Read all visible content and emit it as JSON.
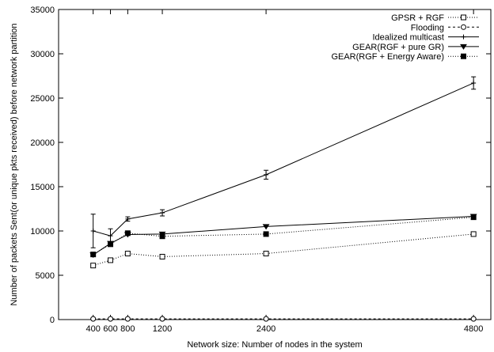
{
  "chart_data": {
    "type": "line",
    "xlabel": "Network size: Number of nodes in the system",
    "ylabel": "Number of packets Sent(or unique pkts received) before network partition",
    "xlim": [
      0,
      5000
    ],
    "ylim": [
      0,
      35000
    ],
    "x_ticks": [
      400,
      600,
      800,
      1200,
      2400,
      4800
    ],
    "x_tick_labels": [
      "400",
      "600",
      "800",
      "1200",
      "2400",
      "4800"
    ],
    "y_ticks": [
      0,
      5000,
      10000,
      15000,
      20000,
      25000,
      30000,
      35000
    ],
    "y_tick_labels": [
      "0",
      "5000",
      "10000",
      "15000",
      "20000",
      "25000",
      "30000",
      "35000"
    ],
    "grid": false,
    "legend_position": "top-right",
    "x": [
      400,
      600,
      800,
      1200,
      2400,
      4800
    ],
    "series": [
      {
        "name": "GPSR + RGF",
        "values": [
          6100,
          6700,
          7450,
          7100,
          7450,
          9650
        ],
        "line_style": "dotted",
        "marker": "open-square",
        "color": "#000000"
      },
      {
        "name": "Flooding",
        "values": [
          80,
          80,
          80,
          80,
          80,
          80
        ],
        "line_style": "dashed",
        "marker": "open-circle",
        "color": "#000000"
      },
      {
        "name": "Idealized multicast",
        "values": [
          10000,
          9450,
          11350,
          12050,
          16350,
          26700
        ],
        "error": [
          1900,
          800,
          250,
          350,
          500,
          700
        ],
        "line_style": "solid",
        "marker": "plus",
        "color": "#000000"
      },
      {
        "name": "GEAR(RGF + pure GR)",
        "values": [
          7300,
          8600,
          9600,
          9650,
          10500,
          11650
        ],
        "line_style": "solid",
        "marker": "down-triangle",
        "color": "#000000"
      },
      {
        "name": "GEAR(RGF + Energy Aware)",
        "values": [
          7350,
          8500,
          9750,
          9400,
          9650,
          11550
        ],
        "line_style": "dotted",
        "marker": "filled-square",
        "color": "#000000"
      }
    ]
  }
}
